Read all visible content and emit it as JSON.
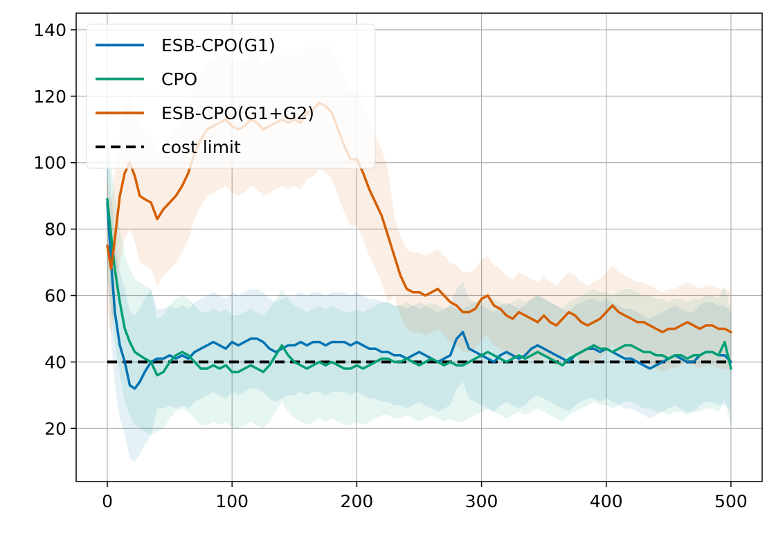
{
  "chart_data": {
    "type": "line",
    "title": "",
    "xlabel": "",
    "ylabel": "",
    "xlim": [
      -25,
      525
    ],
    "ylim": [
      4,
      145
    ],
    "xticks": [
      0,
      100,
      200,
      300,
      400,
      500
    ],
    "yticks": [
      20,
      40,
      60,
      80,
      100,
      120,
      140
    ],
    "grid": true,
    "legend_position": "top-left",
    "reference_line": {
      "name": "cost limit",
      "y": 40,
      "x_range": [
        0,
        500
      ],
      "style": "dashed",
      "color": "#000000"
    },
    "series": [
      {
        "name": "ESB-CPO(G1)",
        "color": "#0072B2",
        "x": [
          0,
          3,
          6,
          10,
          14,
          18,
          22,
          26,
          30,
          35,
          40,
          45,
          50,
          55,
          60,
          65,
          70,
          75,
          80,
          85,
          90,
          95,
          100,
          105,
          110,
          115,
          120,
          125,
          130,
          135,
          140,
          145,
          150,
          155,
          160,
          165,
          170,
          175,
          180,
          185,
          190,
          195,
          200,
          205,
          210,
          215,
          220,
          225,
          230,
          235,
          240,
          245,
          250,
          255,
          260,
          265,
          270,
          275,
          280,
          285,
          290,
          295,
          300,
          305,
          310,
          315,
          320,
          325,
          330,
          335,
          340,
          345,
          350,
          355,
          360,
          365,
          370,
          375,
          380,
          385,
          390,
          395,
          400,
          405,
          410,
          415,
          420,
          425,
          430,
          435,
          440,
          445,
          450,
          455,
          460,
          465,
          470,
          475,
          480,
          485,
          490,
          495,
          500
        ],
        "y": [
          88,
          70,
          55,
          45,
          40,
          33,
          32,
          34,
          37,
          40,
          41,
          41,
          42,
          41,
          42,
          41,
          43,
          44,
          45,
          46,
          45,
          44,
          46,
          45,
          46,
          47,
          47,
          46,
          44,
          43,
          44,
          45,
          45,
          46,
          45,
          46,
          46,
          45,
          46,
          46,
          46,
          45,
          46,
          45,
          44,
          44,
          43,
          43,
          42,
          42,
          41,
          42,
          43,
          42,
          41,
          40,
          41,
          42,
          47,
          49,
          44,
          43,
          42,
          41,
          40,
          42,
          43,
          42,
          41,
          42,
          44,
          45,
          44,
          43,
          42,
          41,
          40,
          42,
          43,
          44,
          44,
          43,
          44,
          43,
          42,
          41,
          41,
          40,
          39,
          38,
          39,
          40,
          41,
          42,
          41,
          40,
          40,
          42,
          43,
          43,
          42,
          42,
          40
        ]
      },
      {
        "name": "CPO",
        "color": "#009E73",
        "x": [
          0,
          3,
          6,
          10,
          14,
          18,
          22,
          26,
          30,
          35,
          40,
          45,
          50,
          55,
          60,
          65,
          70,
          75,
          80,
          85,
          90,
          95,
          100,
          105,
          110,
          115,
          120,
          125,
          130,
          135,
          140,
          145,
          150,
          155,
          160,
          165,
          170,
          175,
          180,
          185,
          190,
          195,
          200,
          205,
          210,
          215,
          220,
          225,
          230,
          235,
          240,
          245,
          250,
          255,
          260,
          265,
          270,
          275,
          280,
          285,
          290,
          295,
          300,
          305,
          310,
          315,
          320,
          325,
          330,
          335,
          340,
          345,
          350,
          355,
          360,
          365,
          370,
          375,
          380,
          385,
          390,
          395,
          400,
          405,
          410,
          415,
          420,
          425,
          430,
          435,
          440,
          445,
          450,
          455,
          460,
          465,
          470,
          475,
          480,
          485,
          490,
          495,
          500
        ],
        "y": [
          89,
          78,
          68,
          58,
          50,
          46,
          43,
          42,
          41,
          40,
          36,
          37,
          40,
          42,
          43,
          42,
          40,
          38,
          38,
          39,
          38,
          39,
          37,
          37,
          38,
          39,
          38,
          37,
          39,
          42,
          45,
          42,
          40,
          39,
          38,
          39,
          40,
          39,
          40,
          39,
          38,
          38,
          39,
          38,
          39,
          40,
          41,
          41,
          40,
          40,
          41,
          40,
          39,
          40,
          41,
          40,
          39,
          40,
          39,
          39,
          40,
          41,
          42,
          43,
          42,
          41,
          40,
          41,
          42,
          41,
          42,
          43,
          42,
          41,
          40,
          39,
          41,
          42,
          43,
          44,
          45,
          44,
          44,
          43,
          44,
          45,
          45,
          44,
          43,
          43,
          42,
          42,
          41,
          42,
          42,
          41,
          42,
          42,
          43,
          43,
          42,
          46,
          38
        ]
      },
      {
        "name": "ESB-CPO(G1+G2)",
        "color": "#D55E00",
        "x": [
          0,
          3,
          6,
          10,
          14,
          18,
          22,
          26,
          30,
          35,
          40,
          45,
          50,
          55,
          60,
          65,
          70,
          75,
          80,
          85,
          90,
          95,
          100,
          105,
          110,
          115,
          120,
          125,
          130,
          135,
          140,
          145,
          150,
          155,
          160,
          165,
          170,
          175,
          180,
          185,
          190,
          195,
          200,
          205,
          210,
          215,
          220,
          225,
          230,
          235,
          240,
          245,
          250,
          255,
          260,
          265,
          270,
          275,
          280,
          285,
          290,
          295,
          300,
          305,
          310,
          315,
          320,
          325,
          330,
          335,
          340,
          345,
          350,
          355,
          360,
          365,
          370,
          375,
          380,
          385,
          390,
          395,
          400,
          405,
          410,
          415,
          420,
          425,
          430,
          435,
          440,
          445,
          450,
          455,
          460,
          465,
          470,
          475,
          480,
          485,
          490,
          495,
          500
        ],
        "y": [
          75,
          68,
          77,
          90,
          97,
          100,
          96,
          90,
          89,
          88,
          83,
          86,
          88,
          90,
          93,
          97,
          103,
          107,
          110,
          111,
          112,
          113,
          111,
          110,
          111,
          113,
          112,
          110,
          111,
          112,
          113,
          112,
          113,
          112,
          115,
          116,
          118,
          117,
          115,
          110,
          105,
          101,
          101,
          97,
          92,
          88,
          84,
          78,
          72,
          66,
          62,
          61,
          61,
          60,
          61,
          62,
          60,
          58,
          57,
          55,
          55,
          56,
          59,
          60,
          57,
          56,
          54,
          53,
          55,
          54,
          53,
          52,
          54,
          52,
          51,
          53,
          55,
          54,
          52,
          51,
          52,
          53,
          55,
          57,
          55,
          54,
          53,
          52,
          52,
          51,
          50,
          49,
          50,
          50,
          51,
          52,
          51,
          50,
          51,
          51,
          50,
          50,
          49
        ]
      }
    ]
  }
}
